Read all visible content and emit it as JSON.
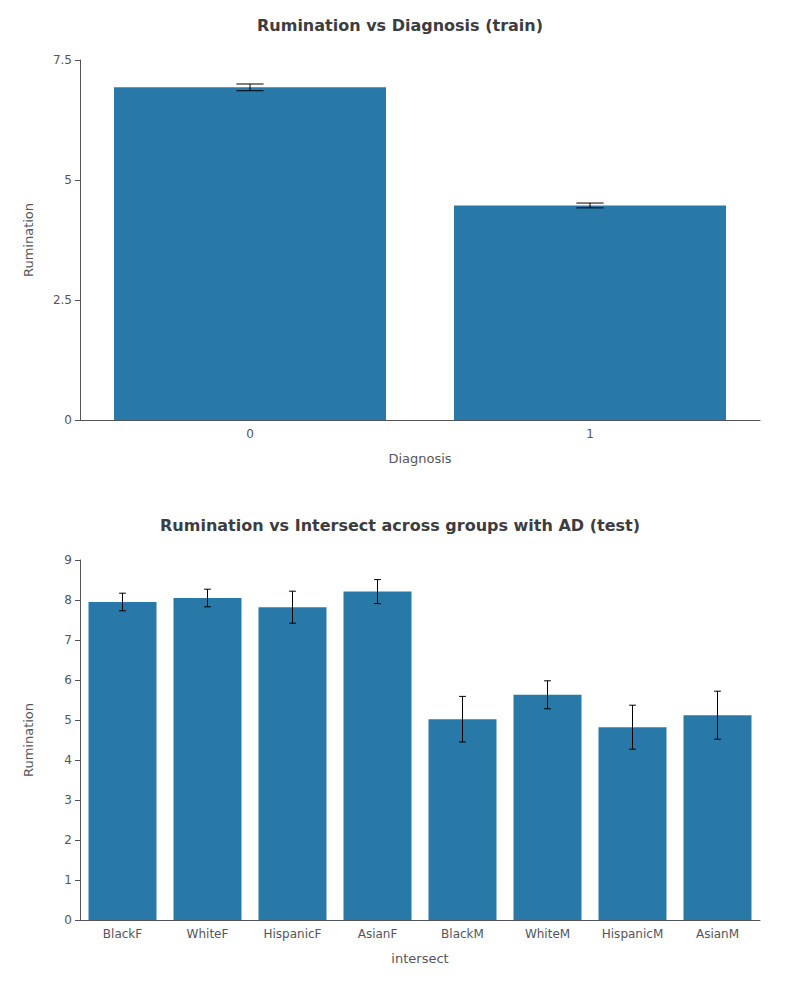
{
  "chart_data": [
    {
      "type": "bar",
      "title": "Rumination vs Diagnosis (train)",
      "xlabel": "Diagnosis",
      "ylabel": "Rumination",
      "categories": [
        "0",
        "1"
      ],
      "values": [
        6.93,
        4.47
      ],
      "errors": [
        0.07,
        0.05
      ],
      "color": "#2878a8",
      "ylim": [
        0,
        7.5
      ],
      "yticks": [
        0,
        2.5,
        5,
        7.5
      ],
      "grid": false
    },
    {
      "type": "bar",
      "title": "Rumination vs Intersect across groups with AD (test)",
      "xlabel": "intersect",
      "ylabel": "Rumination",
      "categories": [
        "BlackF",
        "WhiteF",
        "HispanicF",
        "AsianF",
        "BlackM",
        "WhiteM",
        "HispanicM",
        "AsianM"
      ],
      "values": [
        7.95,
        8.05,
        7.82,
        8.21,
        5.02,
        5.63,
        4.82,
        5.12
      ],
      "errors": [
        0.22,
        0.22,
        0.4,
        0.3,
        0.57,
        0.35,
        0.55,
        0.6
      ],
      "color": "#2878a8",
      "ylim": [
        0,
        9.0
      ],
      "yticks": [
        0,
        1,
        2,
        3,
        4,
        5,
        6,
        7,
        8,
        9
      ],
      "grid": false
    }
  ]
}
